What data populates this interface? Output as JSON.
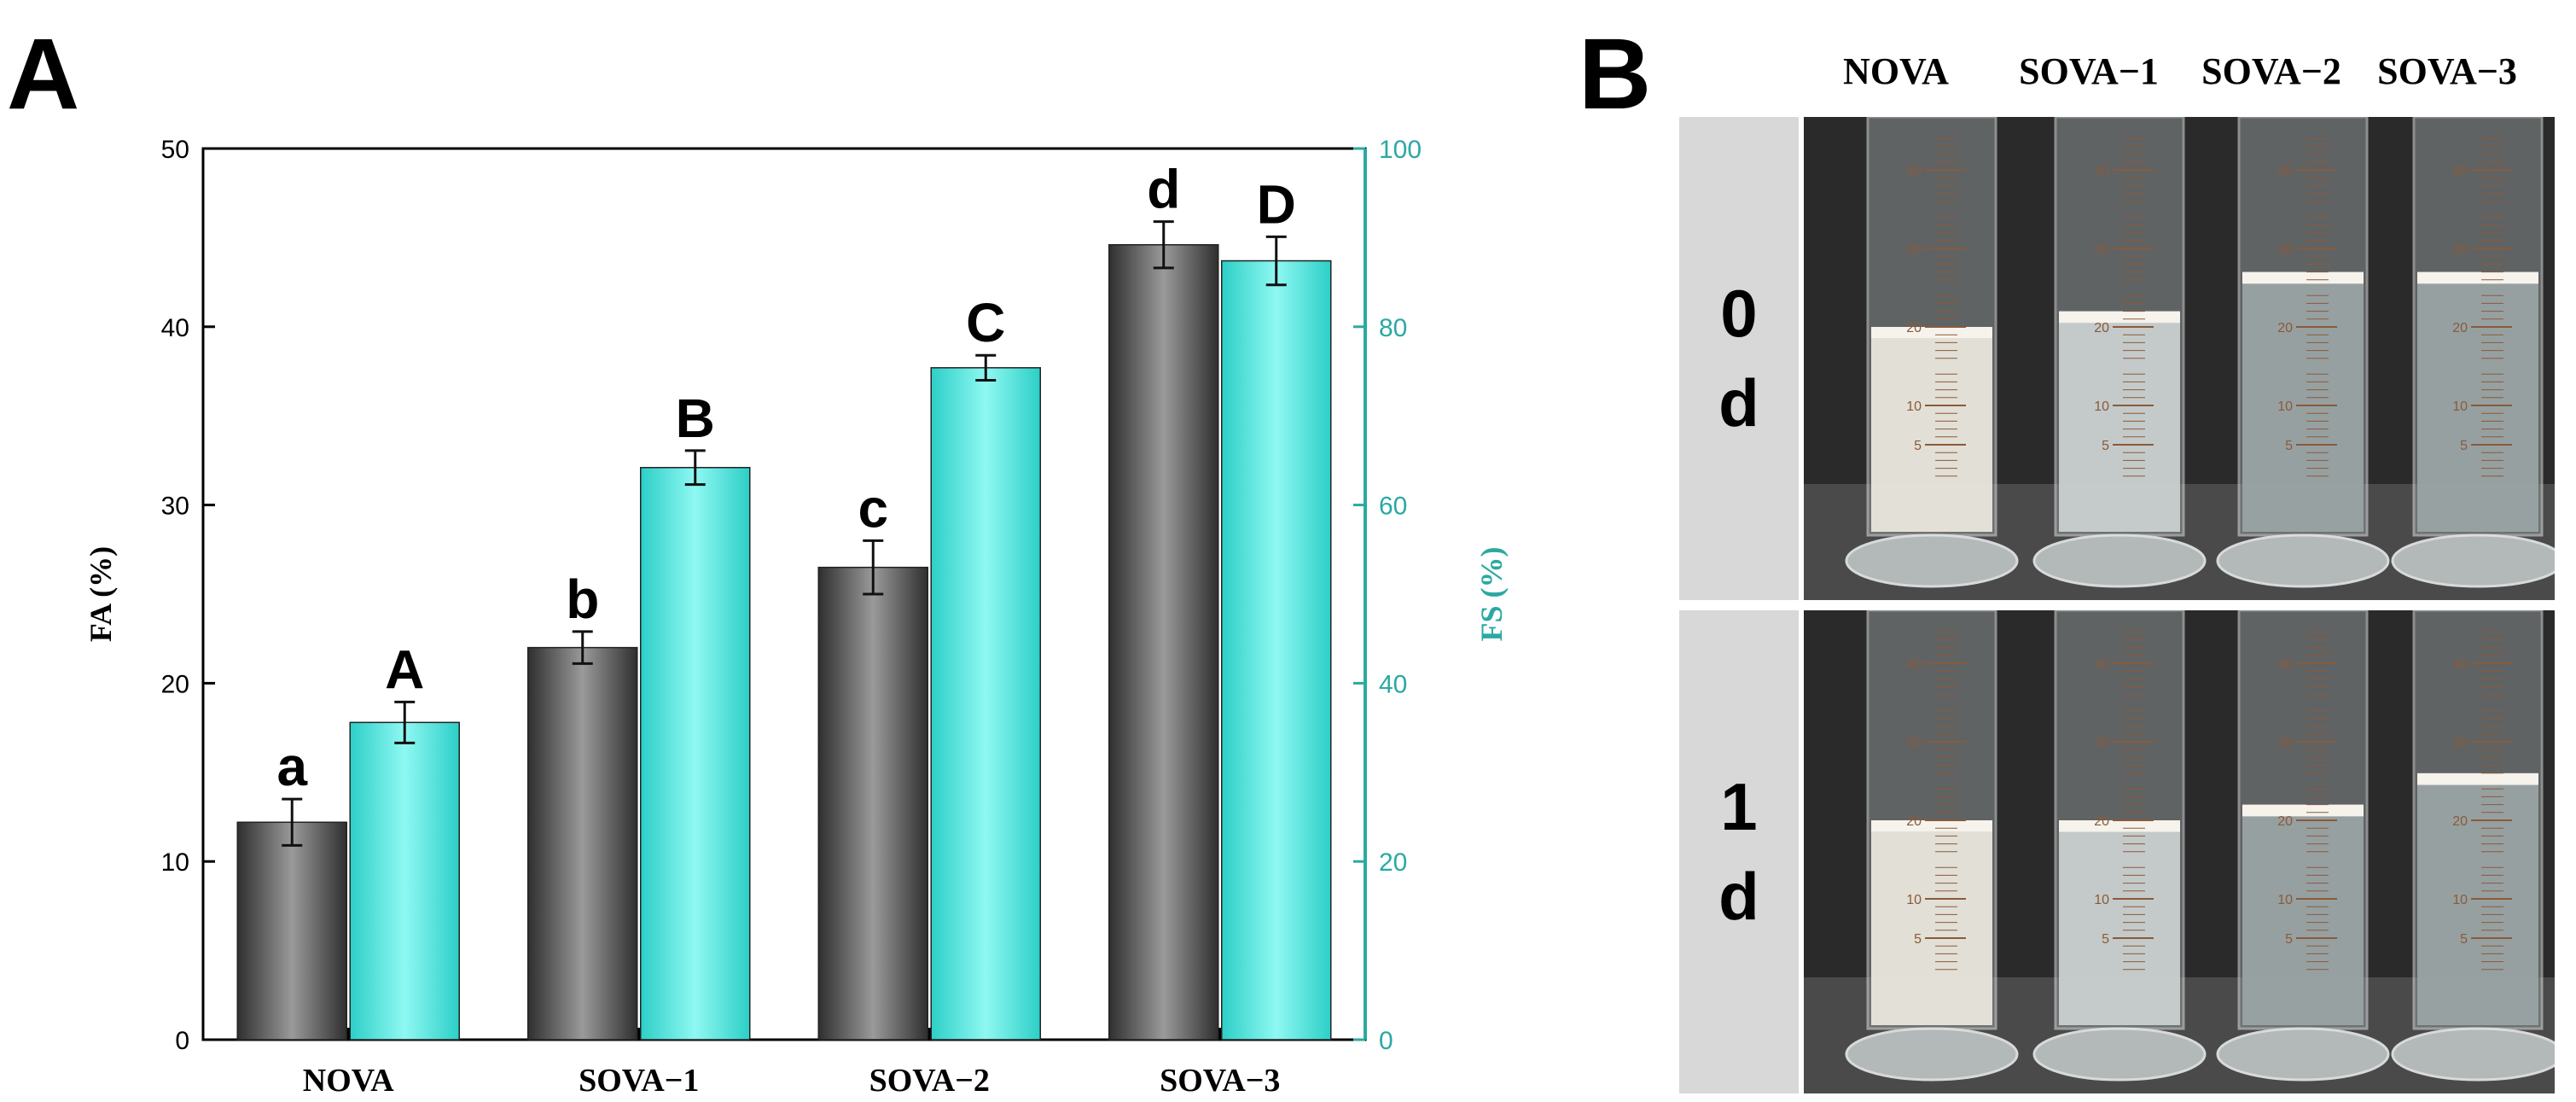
{
  "panels": {
    "a_label": "A",
    "b_label": "B"
  },
  "chart_data": {
    "type": "bar",
    "categories": [
      "NOVA",
      "SOVA−1",
      "SOVA−2",
      "SOVA−3"
    ],
    "series": [
      {
        "name": "FA (%)",
        "axis": "left",
        "color": "#555555",
        "values": [
          12.2,
          22.0,
          26.5,
          44.6
        ],
        "errors": [
          1.3,
          0.9,
          1.5,
          1.3
        ],
        "letters": [
          "a",
          "b",
          "c",
          "d"
        ]
      },
      {
        "name": "FS (%)",
        "axis": "right",
        "color": "#36e5dc",
        "values": [
          35.6,
          64.2,
          75.4,
          87.4
        ],
        "errors": [
          2.3,
          1.9,
          1.4,
          2.7
        ],
        "letters": [
          "A",
          "B",
          "C",
          "D"
        ]
      }
    ],
    "ylabel_left": "FA (%)",
    "ylim_left": [
      0,
      50
    ],
    "yticks_left": [
      "0",
      "10",
      "20",
      "30",
      "40",
      "50"
    ],
    "ylabel_right": "FS (%)",
    "ylim_right": [
      0,
      100
    ],
    "yticks_right": [
      "0",
      "20",
      "40",
      "60",
      "80",
      "100"
    ],
    "right_axis_color": "#2aa9a2"
  },
  "photos": {
    "columns": [
      "NOVA",
      "SOVA−1",
      "SOVA−2",
      "SOVA−3"
    ],
    "rows": [
      {
        "label": "0 d",
        "foam_level": [
          20,
          22,
          27,
          27
        ],
        "opacity": [
          "milky",
          "translucent",
          "clear",
          "clear"
        ]
      },
      {
        "label": "1 d",
        "foam_level": [
          20,
          20,
          22,
          26
        ],
        "opacity": [
          "milky",
          "translucent",
          "clear",
          "clear"
        ]
      }
    ],
    "scale_marks": [
      "5",
      "10",
      "20",
      "30",
      "40"
    ]
  }
}
